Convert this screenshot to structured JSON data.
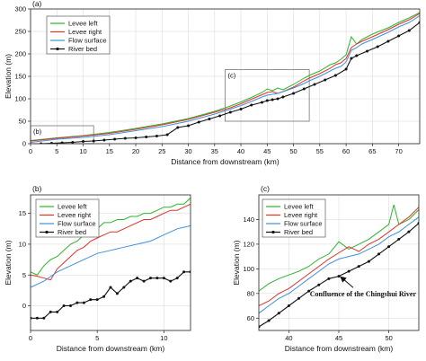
{
  "colors": {
    "levee_left": "#2bb52b",
    "levee_right": "#e0312b",
    "flow_surface": "#3f8fdc",
    "river_bed": "#111111"
  },
  "chart_data": [
    {
      "id": "a",
      "panel_label": "(a)",
      "type": "line",
      "xlabel": "Distance from downstream (km)",
      "ylabel": "Elevation (m)",
      "xlim": [
        0,
        74
      ],
      "ylim": [
        0,
        300
      ],
      "xticks": [
        0,
        5,
        10,
        15,
        20,
        25,
        30,
        35,
        40,
        45,
        50,
        55,
        60,
        65,
        70
      ],
      "yticks": [
        0,
        50,
        100,
        150,
        200,
        250,
        300
      ],
      "grid": true,
      "legend_position": "top-left",
      "zoom_boxes": [
        {
          "label": "(b)",
          "x": [
            0,
            12
          ],
          "y": [
            0,
            40
          ]
        },
        {
          "label": "(c)",
          "x": [
            37,
            53
          ],
          "y": [
            50,
            165
          ]
        }
      ],
      "series": [
        {
          "name": "Levee left",
          "color_key": "levee_left",
          "x": [
            0,
            5,
            10,
            15,
            20,
            25,
            30,
            35,
            38,
            40,
            42,
            44,
            45,
            46,
            47,
            48,
            50,
            52,
            53,
            55,
            57,
            58,
            59,
            60,
            61,
            62,
            63,
            65,
            68,
            70,
            72,
            74
          ],
          "y": [
            7,
            13,
            18,
            25,
            34,
            44,
            56,
            72,
            84,
            93,
            103,
            114,
            122,
            118,
            124,
            120,
            132,
            146,
            152,
            162,
            176,
            180,
            188,
            198,
            238,
            222,
            232,
            244,
            258,
            270,
            280,
            292
          ]
        },
        {
          "name": "Levee right",
          "color_key": "levee_right",
          "x": [
            0,
            5,
            10,
            15,
            20,
            25,
            30,
            35,
            38,
            40,
            42,
            44,
            45,
            46,
            47,
            48,
            50,
            52,
            53,
            55,
            57,
            58,
            59,
            60,
            61,
            62,
            63,
            65,
            68,
            70,
            72,
            74
          ],
          "y": [
            6,
            12,
            17,
            23,
            32,
            42,
            54,
            70,
            80,
            89,
            99,
            109,
            114,
            116,
            112,
            116,
            126,
            140,
            146,
            156,
            168,
            176,
            180,
            190,
            214,
            222,
            228,
            238,
            254,
            266,
            276,
            290
          ]
        },
        {
          "name": "Flow surface",
          "color_key": "flow_surface",
          "x": [
            0,
            5,
            10,
            15,
            20,
            25,
            30,
            35,
            38,
            40,
            42,
            44,
            45,
            46,
            47,
            48,
            50,
            52,
            53,
            55,
            57,
            58,
            59,
            60,
            61,
            62,
            63,
            65,
            68,
            70,
            72,
            74
          ],
          "y": [
            3,
            10,
            14,
            20,
            29,
            38,
            50,
            66,
            77,
            85,
            94,
            104,
            108,
            110,
            112,
            116,
            124,
            134,
            140,
            150,
            162,
            168,
            172,
            182,
            208,
            214,
            222,
            232,
            248,
            260,
            270,
            285
          ]
        },
        {
          "name": "River bed",
          "color_key": "river_bed",
          "x": [
            0,
            2,
            4,
            6,
            8,
            10,
            12,
            14,
            16,
            18,
            20,
            22,
            24,
            26,
            28,
            30,
            32,
            34,
            36,
            38,
            40,
            42,
            44,
            45,
            46,
            47,
            48,
            50,
            52,
            54,
            56,
            58,
            60,
            61,
            62,
            64,
            66,
            68,
            70,
            72,
            74
          ],
          "y": [
            -2,
            0,
            1,
            2,
            3,
            5,
            6,
            8,
            10,
            12,
            13,
            15,
            17,
            20,
            36,
            40,
            48,
            55,
            62,
            70,
            77,
            86,
            92,
            96,
            98,
            100,
            104,
            112,
            122,
            132,
            142,
            152,
            166,
            190,
            196,
            206,
            216,
            228,
            240,
            252,
            270
          ]
        }
      ]
    },
    {
      "id": "b",
      "panel_label": "(b)",
      "type": "line",
      "xlabel": "Distance from downstream (km)",
      "ylabel": "Elevation (m)",
      "xlim": [
        0,
        12
      ],
      "ylim": [
        -4,
        18
      ],
      "xticks": [
        0,
        5,
        10
      ],
      "yticks": [
        0,
        5,
        10,
        15
      ],
      "grid": true,
      "legend_position": "top-left",
      "series": [
        {
          "name": "Levee left",
          "color_key": "levee_left",
          "x": [
            0,
            0.5,
            1,
            1.5,
            2,
            2.5,
            3,
            3.5,
            4,
            4.5,
            5,
            5.5,
            6,
            6.5,
            7,
            7.5,
            8,
            8.5,
            9,
            9.5,
            10,
            10.5,
            11,
            11.5,
            12
          ],
          "y": [
            5.5,
            5.0,
            6.5,
            7.5,
            8.0,
            9.0,
            10.0,
            10.5,
            11.5,
            12.0,
            12.5,
            13.5,
            13.5,
            14.0,
            14.0,
            14.5,
            14.5,
            15.0,
            15.0,
            15.5,
            16.0,
            16.0,
            16.5,
            16.5,
            17.5
          ]
        },
        {
          "name": "Levee right",
          "color_key": "levee_right",
          "x": [
            0,
            0.5,
            1,
            1.5,
            2,
            2.5,
            3,
            3.5,
            4,
            4.5,
            5,
            5.5,
            6,
            6.5,
            7,
            7.5,
            8,
            8.5,
            9,
            9.5,
            10,
            10.5,
            11,
            11.5,
            12
          ],
          "y": [
            5.0,
            4.8,
            4.5,
            4.2,
            6.0,
            7.0,
            8.0,
            9.0,
            9.5,
            10.5,
            11.0,
            11.5,
            12.0,
            12.0,
            12.5,
            13.0,
            13.5,
            14.0,
            14.0,
            14.5,
            15.0,
            15.5,
            15.5,
            16.0,
            16.5
          ]
        },
        {
          "name": "Flow surface",
          "color_key": "flow_surface",
          "x": [
            0,
            1,
            2,
            3,
            4,
            5,
            6,
            7,
            8,
            9,
            10,
            11,
            12
          ],
          "y": [
            3.0,
            4.0,
            5.5,
            6.5,
            7.5,
            8.5,
            9.0,
            9.5,
            10.0,
            10.5,
            11.5,
            12.5,
            13.0
          ]
        },
        {
          "name": "River bed",
          "color_key": "river_bed",
          "x": [
            0,
            0.5,
            1,
            1.5,
            2,
            2.5,
            3,
            3.5,
            4,
            4.5,
            5,
            5.5,
            6,
            6.5,
            7,
            7.5,
            8,
            8.5,
            9,
            9.5,
            10,
            10.5,
            11,
            11.5,
            12
          ],
          "y": [
            -2.0,
            -2.0,
            -2.0,
            -1.0,
            -1.0,
            0.0,
            0.0,
            0.5,
            0.5,
            1.0,
            1.0,
            1.5,
            3.0,
            2.0,
            3.0,
            4.0,
            4.5,
            4.0,
            4.5,
            4.5,
            4.5,
            4.0,
            4.5,
            5.5,
            5.5
          ]
        }
      ]
    },
    {
      "id": "c",
      "panel_label": "(c)",
      "type": "line",
      "xlabel": "Distance from downstream (km)",
      "ylabel": "Elevation (m)",
      "xlim": [
        37,
        53
      ],
      "ylim": [
        50,
        160
      ],
      "xticks": [
        40,
        45,
        50
      ],
      "yticks": [
        60,
        80,
        100,
        120,
        140
      ],
      "grid": true,
      "legend_position": "top-left",
      "annotation": {
        "text": "Confluence of the Chingshui River",
        "arrow_to": [
          45,
          95
        ]
      },
      "series": [
        {
          "name": "Levee left",
          "color_key": "levee_left",
          "x": [
            37,
            38,
            39,
            40,
            41,
            42,
            43,
            44,
            45,
            46,
            47,
            48,
            49,
            50,
            50.5,
            51,
            52,
            53
          ],
          "y": [
            82,
            88,
            92,
            95,
            98,
            102,
            108,
            112,
            122,
            116,
            120,
            124,
            130,
            136,
            152,
            136,
            140,
            148
          ]
        },
        {
          "name": "Levee right",
          "color_key": "levee_right",
          "x": [
            37,
            38,
            39,
            40,
            41,
            42,
            43,
            44,
            45,
            46,
            47,
            48,
            49,
            50,
            51,
            52,
            53
          ],
          "y": [
            70,
            74,
            80,
            84,
            90,
            96,
            102,
            108,
            113,
            118,
            114,
            120,
            124,
            130,
            136,
            142,
            150
          ]
        },
        {
          "name": "Flow surface",
          "color_key": "flow_surface",
          "x": [
            37,
            38,
            39,
            40,
            41,
            42,
            43,
            44,
            45,
            46,
            47,
            48,
            49,
            50,
            51,
            52,
            53
          ],
          "y": [
            64,
            70,
            76,
            80,
            86,
            92,
            98,
            104,
            108,
            110,
            112,
            116,
            120,
            126,
            130,
            136,
            142
          ]
        },
        {
          "name": "River bed",
          "color_key": "river_bed",
          "x": [
            37,
            38,
            39,
            40,
            41,
            42,
            43,
            44,
            45,
            46,
            47,
            48,
            49,
            50,
            51,
            52,
            53
          ],
          "y": [
            53,
            58,
            64,
            70,
            76,
            82,
            87,
            92,
            94,
            98,
            102,
            106,
            112,
            118,
            124,
            130,
            137
          ]
        }
      ]
    }
  ]
}
